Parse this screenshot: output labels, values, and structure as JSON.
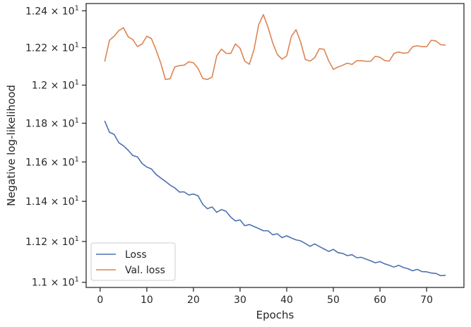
{
  "chart_data": {
    "type": "line",
    "xlabel": "Epochs",
    "ylabel": "Negative log-likelihood",
    "xlim": [
      -3,
      78
    ],
    "ylim": [
      10.975,
      12.44
    ],
    "yscale": "log",
    "grid": false,
    "legend_position": "lower-left",
    "x_ticks": [
      0,
      10,
      20,
      30,
      40,
      50,
      60,
      70
    ],
    "y_ticks": [
      {
        "value": 11.0,
        "mantissa": "1.1"
      },
      {
        "value": 11.2,
        "mantissa": "1.12"
      },
      {
        "value": 11.4,
        "mantissa": "1.14"
      },
      {
        "value": 11.6,
        "mantissa": "1.16"
      },
      {
        "value": 11.8,
        "mantissa": "1.18"
      },
      {
        "value": 12.0,
        "mantissa": "1.2"
      },
      {
        "value": 12.2,
        "mantissa": "1.22"
      },
      {
        "value": 12.4,
        "mantissa": "1.24"
      }
    ],
    "y_tick_suffix": " × 10",
    "y_tick_exponent": "1",
    "x": [
      1,
      2,
      3,
      4,
      5,
      6,
      7,
      8,
      9,
      10,
      11,
      12,
      13,
      14,
      15,
      16,
      17,
      18,
      19,
      20,
      21,
      22,
      23,
      24,
      25,
      26,
      27,
      28,
      29,
      30,
      31,
      32,
      33,
      34,
      35,
      36,
      37,
      38,
      39,
      40,
      41,
      42,
      43,
      44,
      45,
      46,
      47,
      48,
      49,
      50,
      51,
      52,
      53,
      54,
      55,
      56,
      57,
      58,
      59,
      60,
      61,
      62,
      63,
      64,
      65,
      66,
      67,
      68,
      69,
      70,
      71,
      72,
      73,
      74
    ],
    "series": [
      {
        "name": "Loss",
        "color": "#4c72b0",
        "values": [
          11.81,
          11.753,
          11.742,
          11.699,
          11.683,
          11.66,
          11.633,
          11.626,
          11.592,
          11.574,
          11.564,
          11.536,
          11.518,
          11.501,
          11.482,
          11.468,
          11.447,
          11.448,
          11.432,
          11.437,
          11.428,
          11.385,
          11.363,
          11.372,
          11.345,
          11.359,
          11.35,
          11.321,
          11.302,
          11.307,
          11.278,
          11.284,
          11.274,
          11.264,
          11.253,
          11.253,
          11.233,
          11.238,
          11.219,
          11.228,
          11.217,
          11.208,
          11.203,
          11.19,
          11.176,
          11.188,
          11.175,
          11.163,
          11.151,
          11.161,
          11.145,
          11.141,
          11.13,
          11.135,
          11.12,
          11.122,
          11.113,
          11.105,
          11.095,
          11.101,
          11.09,
          11.083,
          11.074,
          11.083,
          11.072,
          11.066,
          11.056,
          11.063,
          11.052,
          11.051,
          11.045,
          11.043,
          11.032,
          11.034
        ]
      },
      {
        "name": "Val. loss",
        "color": "#dd8452",
        "values": [
          12.128,
          12.24,
          12.262,
          12.292,
          12.308,
          12.259,
          12.244,
          12.206,
          12.22,
          12.262,
          12.249,
          12.187,
          12.117,
          12.03,
          12.034,
          12.097,
          12.104,
          12.106,
          12.124,
          12.119,
          12.089,
          12.035,
          12.03,
          12.043,
          12.156,
          12.192,
          12.17,
          12.169,
          12.22,
          12.197,
          12.128,
          12.111,
          12.191,
          12.325,
          12.379,
          12.31,
          12.226,
          12.163,
          12.138,
          12.156,
          12.261,
          12.297,
          12.229,
          12.137,
          12.128,
          12.146,
          12.194,
          12.192,
          12.129,
          12.084,
          12.096,
          12.106,
          12.117,
          12.11,
          12.13,
          12.13,
          12.127,
          12.127,
          12.154,
          12.148,
          12.131,
          12.128,
          12.169,
          12.177,
          12.17,
          12.173,
          12.205,
          12.21,
          12.206,
          12.205,
          12.24,
          12.236,
          12.216,
          12.214
        ]
      }
    ]
  }
}
